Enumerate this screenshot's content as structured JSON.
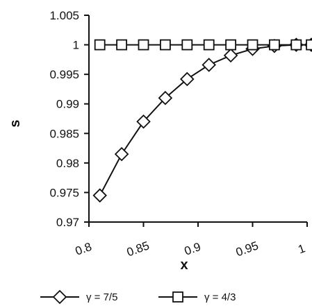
{
  "chart_data": {
    "type": "line",
    "xlabel": "x",
    "ylabel": "s",
    "xlim": [
      0.8,
      1.0
    ],
    "ylim": [
      0.97,
      1.005
    ],
    "x_ticks": [
      "0.8",
      "0.85",
      "0.9",
      "0.95",
      "1"
    ],
    "y_ticks": [
      "0.97",
      "0.975",
      "0.98",
      "0.985",
      "0.99",
      "0.995",
      "1",
      "1.005"
    ],
    "grid": false,
    "legend_position": "bottom",
    "series": [
      {
        "name": "γ = 7/5",
        "marker": "diamond",
        "color": "#111111",
        "x": [
          0.81,
          0.83,
          0.85,
          0.87,
          0.89,
          0.91,
          0.93,
          0.95,
          0.97,
          0.99,
          1.01
        ],
        "y": [
          0.9745,
          0.9815,
          0.987,
          0.991,
          0.9942,
          0.9966,
          0.9982,
          0.9993,
          0.9998,
          1.0,
          1.0
        ]
      },
      {
        "name": "γ = 4/3",
        "marker": "square",
        "color": "#111111",
        "x": [
          0.81,
          0.83,
          0.85,
          0.87,
          0.89,
          0.91,
          0.93,
          0.95,
          0.97,
          0.99,
          1.01
        ],
        "y": [
          1.0,
          1.0,
          1.0,
          1.0,
          1.0,
          1.0,
          1.0,
          1.0,
          1.0,
          1.0,
          1.0
        ]
      }
    ]
  }
}
